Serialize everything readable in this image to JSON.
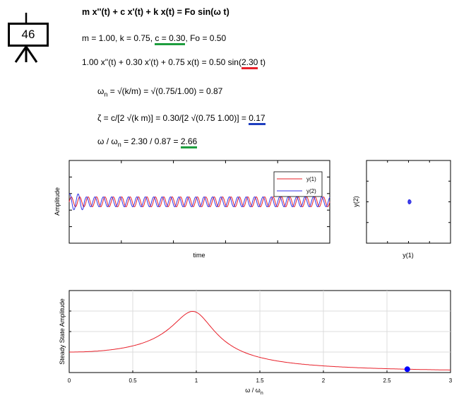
{
  "counter": {
    "value": "46",
    "icon": "presentation-board-icon"
  },
  "equations": {
    "title": "m x''(t) + c x'(t) + k x(t) = Fo sin(ω t)",
    "params_prefix": "m = 1.00, k = 0.75, ",
    "params_c": "c = 0.30",
    "params_suffix": ", Fo = 0.50",
    "ode_prefix": "1.00 x''(t) + 0.30 x'(t) + 0.75 x(t) = 0.50 sin(",
    "ode_omega": "2.30",
    "ode_suffix": " t)",
    "wn_a": "ω",
    "wn_sub": "n",
    "wn_rest": " = √(k/m) = √(0.75/1.00) = 0.87",
    "zeta_main": "ζ = c/[2 √(k m)] = 0.30/[2 √(0.75 1.00)] = ",
    "zeta_value": "0.17",
    "ratio_a": "ω / ω",
    "ratio_sub": "n",
    "ratio_mid": " = 2.30 / 0.87 = ",
    "ratio_value": "2.66",
    "underline_colors": {
      "c": "#1e9e3e",
      "omega": "#e8202a",
      "zeta": "#1f3fbf",
      "ratio": "#1e9e3e"
    }
  },
  "chart_data": [
    {
      "type": "line",
      "xlabel": "time",
      "ylabel": "Amplitude",
      "ylim": [
        -1,
        1
      ],
      "grid": false,
      "legend": "top-right",
      "series": [
        {
          "name": "y(1)",
          "color": "#e8202a",
          "amplitude": 0.12,
          "cycles": 31,
          "phase": 0.0
        },
        {
          "name": "y(2)",
          "color": "#3333e6",
          "amplitude": 0.12,
          "cycles": 31,
          "phase": 1.2
        }
      ]
    },
    {
      "type": "scatter",
      "xlabel": "y(1)",
      "ylabel": "y(2)",
      "xlim": [
        -1,
        1
      ],
      "ylim": [
        -1,
        1
      ],
      "grid": false,
      "orbit_center": [
        0.02,
        0.0
      ],
      "orbit_radius": [
        0.03,
        0.05
      ],
      "color": "#3333e6"
    },
    {
      "type": "line",
      "xlabel": "ω / ω",
      "xlabel_sub": "n",
      "ylabel": "Steady State Amplitude",
      "xlim": [
        0,
        3
      ],
      "ylim": [
        0,
        4
      ],
      "grid": true,
      "xticks": [
        "0",
        "0.5",
        "1",
        "1.5",
        "2",
        "2.5",
        "3"
      ],
      "zeta": 0.17,
      "curve_color": "#e8202a",
      "marker": {
        "x": 2.66,
        "color": "#0000ff"
      }
    }
  ]
}
